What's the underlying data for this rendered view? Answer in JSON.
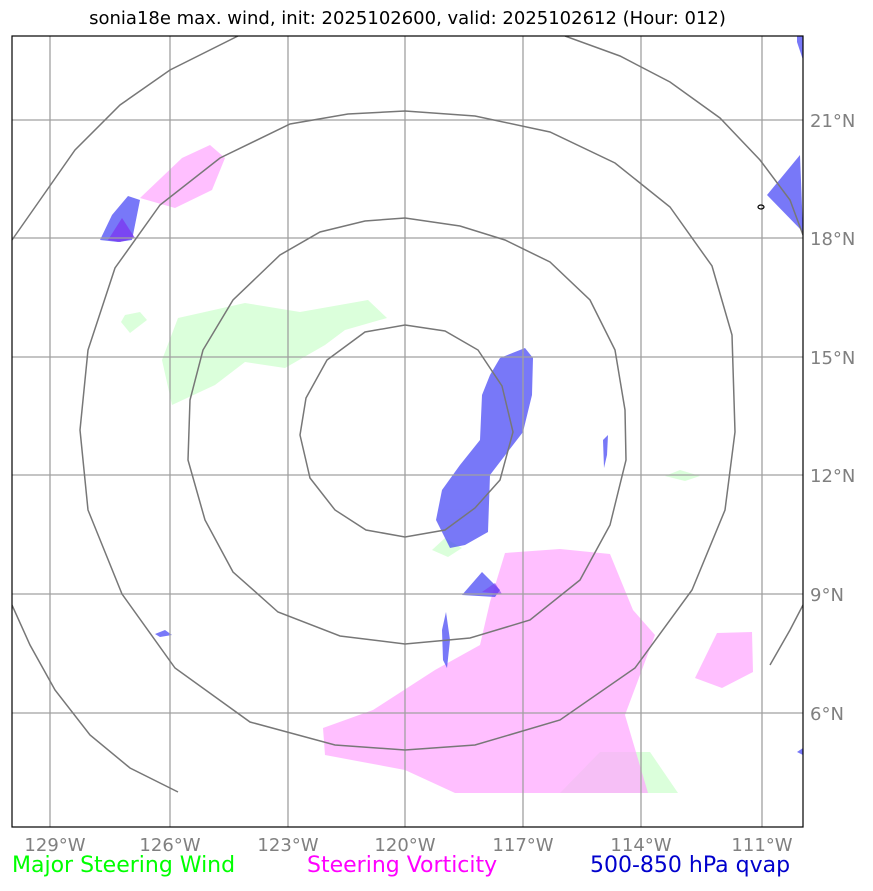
{
  "title": "sonia18e max. wind, init: 2025102600, valid: 2025102612 (Hour: 012)",
  "axes": {
    "lon_labels": [
      "129°W",
      "126°W",
      "123°W",
      "120°W",
      "117°W",
      "114°W",
      "111°W"
    ],
    "lat_labels": [
      "21°N",
      "18°N",
      "15°N",
      "12°N",
      "9°N",
      "6°N"
    ]
  },
  "legend": {
    "wind": {
      "label": "Major Steering Wind",
      "color": "#00ff00"
    },
    "vorticity": {
      "label": "Steering Vorticity",
      "color": "#ff00ff"
    },
    "qvap": {
      "label": "500-850 hPa qvap",
      "color": "#0000cc"
    }
  },
  "colors": {
    "wind_fill": "#ccffcc",
    "vorticity_fill": "#ffaaff",
    "qvap_fill": "#4b4bf5",
    "range_rings": "#777777",
    "grid": "#a0a0a0"
  }
}
